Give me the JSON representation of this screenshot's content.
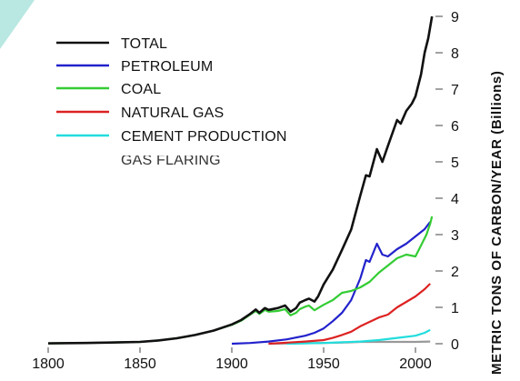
{
  "chart_data": {
    "type": "line",
    "title": "",
    "xlabel": "",
    "ylabel": "METRIC TONS OF CARBON/YEAR (Billions)",
    "xlim": [
      1790,
      2010
    ],
    "ylim": [
      0,
      9
    ],
    "x_ticks": [
      "1800",
      "1850",
      "1900",
      "1950",
      "2000"
    ],
    "y_ticks": [
      "0",
      "1",
      "2",
      "3",
      "4",
      "5",
      "6",
      "7",
      "8",
      "9"
    ],
    "grid": false,
    "legend_position": "top-left",
    "series": [
      {
        "name": "TOTAL",
        "color": "#111111",
        "points": [
          [
            1800,
            0.01
          ],
          [
            1820,
            0.02
          ],
          [
            1840,
            0.04
          ],
          [
            1850,
            0.05
          ],
          [
            1860,
            0.09
          ],
          [
            1870,
            0.15
          ],
          [
            1880,
            0.24
          ],
          [
            1890,
            0.36
          ],
          [
            1900,
            0.53
          ],
          [
            1905,
            0.65
          ],
          [
            1910,
            0.82
          ],
          [
            1913,
            0.94
          ],
          [
            1915,
            0.85
          ],
          [
            1918,
            0.98
          ],
          [
            1920,
            0.93
          ],
          [
            1925,
            0.98
          ],
          [
            1929,
            1.05
          ],
          [
            1932,
            0.88
          ],
          [
            1935,
            0.98
          ],
          [
            1937,
            1.13
          ],
          [
            1940,
            1.2
          ],
          [
            1942,
            1.24
          ],
          [
            1945,
            1.16
          ],
          [
            1947,
            1.3
          ],
          [
            1950,
            1.63
          ],
          [
            1955,
            2.04
          ],
          [
            1960,
            2.58
          ],
          [
            1965,
            3.14
          ],
          [
            1970,
            4.08
          ],
          [
            1973,
            4.63
          ],
          [
            1975,
            4.6
          ],
          [
            1979,
            5.35
          ],
          [
            1982,
            5.0
          ],
          [
            1985,
            5.44
          ],
          [
            1990,
            6.15
          ],
          [
            1992,
            6.05
          ],
          [
            1995,
            6.4
          ],
          [
            1998,
            6.6
          ],
          [
            2000,
            6.8
          ],
          [
            2003,
            7.4
          ],
          [
            2005,
            8.0
          ],
          [
            2007,
            8.4
          ],
          [
            2009,
            9.0
          ]
        ]
      },
      {
        "name": "PETROLEUM",
        "color": "#2222cc",
        "points": [
          [
            1900,
            0.0
          ],
          [
            1910,
            0.02
          ],
          [
            1920,
            0.06
          ],
          [
            1930,
            0.12
          ],
          [
            1940,
            0.22
          ],
          [
            1945,
            0.3
          ],
          [
            1950,
            0.42
          ],
          [
            1955,
            0.62
          ],
          [
            1960,
            0.85
          ],
          [
            1965,
            1.2
          ],
          [
            1970,
            1.8
          ],
          [
            1973,
            2.3
          ],
          [
            1975,
            2.25
          ],
          [
            1979,
            2.75
          ],
          [
            1982,
            2.45
          ],
          [
            1985,
            2.4
          ],
          [
            1990,
            2.6
          ],
          [
            1995,
            2.75
          ],
          [
            2000,
            2.95
          ],
          [
            2005,
            3.15
          ],
          [
            2008,
            3.35
          ]
        ]
      },
      {
        "name": "COAL",
        "color": "#33cc33",
        "points": [
          [
            1800,
            0.01
          ],
          [
            1820,
            0.02
          ],
          [
            1840,
            0.04
          ],
          [
            1850,
            0.05
          ],
          [
            1860,
            0.09
          ],
          [
            1870,
            0.15
          ],
          [
            1880,
            0.24
          ],
          [
            1890,
            0.36
          ],
          [
            1900,
            0.52
          ],
          [
            1905,
            0.63
          ],
          [
            1910,
            0.8
          ],
          [
            1913,
            0.9
          ],
          [
            1915,
            0.82
          ],
          [
            1918,
            0.93
          ],
          [
            1920,
            0.88
          ],
          [
            1925,
            0.9
          ],
          [
            1929,
            0.95
          ],
          [
            1932,
            0.78
          ],
          [
            1935,
            0.85
          ],
          [
            1937,
            0.95
          ],
          [
            1940,
            1.02
          ],
          [
            1942,
            1.05
          ],
          [
            1945,
            0.92
          ],
          [
            1950,
            1.07
          ],
          [
            1955,
            1.2
          ],
          [
            1960,
            1.4
          ],
          [
            1965,
            1.45
          ],
          [
            1970,
            1.55
          ],
          [
            1975,
            1.7
          ],
          [
            1980,
            1.95
          ],
          [
            1985,
            2.15
          ],
          [
            1990,
            2.35
          ],
          [
            1995,
            2.45
          ],
          [
            2000,
            2.4
          ],
          [
            2003,
            2.7
          ],
          [
            2006,
            3.0
          ],
          [
            2008,
            3.3
          ],
          [
            2009,
            3.5
          ]
        ]
      },
      {
        "name": "NATURAL GAS",
        "color": "#dd2222",
        "points": [
          [
            1920,
            0.0
          ],
          [
            1930,
            0.03
          ],
          [
            1940,
            0.06
          ],
          [
            1950,
            0.1
          ],
          [
            1955,
            0.16
          ],
          [
            1960,
            0.24
          ],
          [
            1965,
            0.33
          ],
          [
            1970,
            0.48
          ],
          [
            1975,
            0.6
          ],
          [
            1980,
            0.72
          ],
          [
            1985,
            0.8
          ],
          [
            1990,
            1.0
          ],
          [
            1995,
            1.15
          ],
          [
            2000,
            1.3
          ],
          [
            2005,
            1.5
          ],
          [
            2008,
            1.65
          ]
        ]
      },
      {
        "name": "CEMENT PRODUCTION",
        "color": "#22dddd",
        "points": [
          [
            1930,
            0.0
          ],
          [
            1950,
            0.02
          ],
          [
            1960,
            0.04
          ],
          [
            1970,
            0.06
          ],
          [
            1980,
            0.1
          ],
          [
            1990,
            0.16
          ],
          [
            2000,
            0.22
          ],
          [
            2005,
            0.3
          ],
          [
            2008,
            0.38
          ]
        ]
      },
      {
        "name": "GAS FLARING",
        "color": "#999999",
        "points": [
          [
            1920,
            0.0
          ],
          [
            1950,
            0.02
          ],
          [
            1960,
            0.03
          ],
          [
            1970,
            0.05
          ],
          [
            1980,
            0.05
          ],
          [
            1990,
            0.05
          ],
          [
            2000,
            0.05
          ],
          [
            2008,
            0.06
          ]
        ]
      }
    ]
  }
}
